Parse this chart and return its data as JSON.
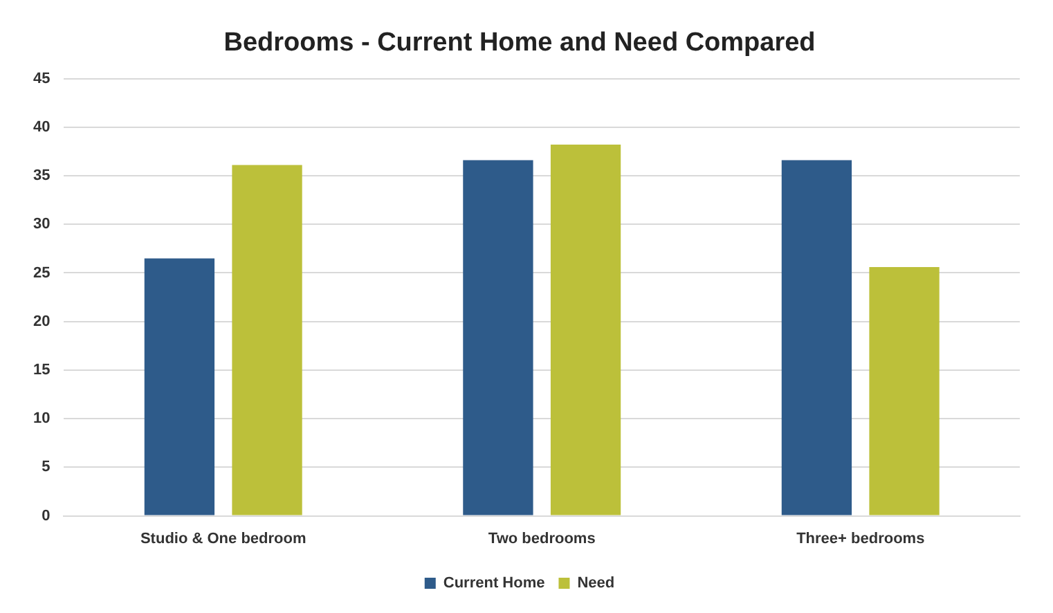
{
  "chart_data": {
    "type": "bar",
    "title": "Bedrooms - Current Home and Need Compared",
    "categories": [
      "Studio & One bedroom",
      "Two bedrooms",
      "Three+ bedrooms"
    ],
    "series": [
      {
        "name": "Current Home",
        "color": "#2e5b8a",
        "values": [
          26.5,
          36.6,
          36.6
        ]
      },
      {
        "name": "Need",
        "color": "#bcc03a",
        "values": [
          36.1,
          38.2,
          25.6
        ]
      }
    ],
    "ylim": [
      0,
      45
    ],
    "yticks": [
      0,
      5,
      10,
      15,
      20,
      25,
      30,
      35,
      40,
      45
    ],
    "grid": "y",
    "legend": "bottom"
  }
}
